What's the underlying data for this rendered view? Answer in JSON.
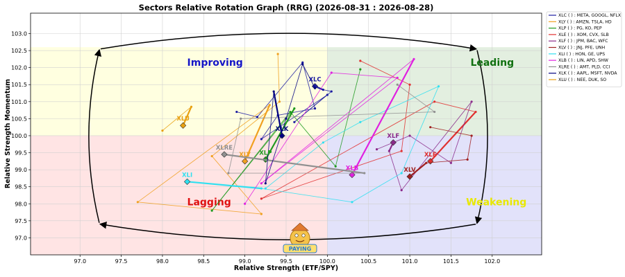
{
  "chart_data": {
    "type": "scatter",
    "title": "Sectors Relative Rotation Graph (RRG) (2026-08-31 : 2026-08-28)",
    "xlabel": "Relative Strength (ETF/SPY)",
    "ylabel": "Relative Strength Momentum",
    "xlim": [
      96.4,
      102.6
    ],
    "ylim": [
      96.5,
      103.6
    ],
    "xticks": [
      "97.0",
      "97.5",
      "98.0",
      "98.5",
      "99.0",
      "99.5",
      "100.0",
      "100.5",
      "101.0",
      "101.5",
      "102.0"
    ],
    "yticks": [
      "97.0",
      "97.5",
      "98.0",
      "98.5",
      "99.0",
      "99.5",
      "100.0",
      "100.5",
      "101.0",
      "101.5",
      "102.0",
      "102.5",
      "103.0"
    ],
    "grid": true,
    "legend_position": "right-outside",
    "quadrants": [
      {
        "name": "Improving",
        "color": "#1515c8",
        "fill": "#ffffe0"
      },
      {
        "name": "Leading",
        "color": "#107010",
        "fill": "#e3efe0"
      },
      {
        "name": "Lagging",
        "color": "#e01010",
        "fill": "#ffe4e4"
      },
      {
        "name": "Weakening",
        "color": "#e8e800",
        "fill": "#e2e2fa"
      }
    ],
    "series": [
      {
        "symbol": "XLC",
        "legend": "XLC ( ) : META, GOOGL, NFLX",
        "color": "#1a1aa0",
        "points": [
          [
            98.9,
            100.7
          ],
          [
            99.15,
            100.55
          ],
          [
            99.7,
            102.15
          ],
          [
            99.85,
            100.8
          ],
          [
            99.4,
            100.6
          ],
          [
            99.2,
            99.9
          ],
          [
            100.0,
            101.2
          ],
          [
            99.6,
            100.4
          ],
          [
            100.05,
            101.3
          ],
          [
            99.95,
            101.35
          ],
          [
            99.85,
            101.45
          ]
        ]
      },
      {
        "symbol": "XLY",
        "legend": "XLY ( ) : AMZN, TSLA, HD",
        "color": "#f0a020",
        "points": [
          [
            99.4,
            102.4
          ],
          [
            99.42,
            101.0
          ],
          [
            98.6,
            99.4
          ],
          [
            99.2,
            97.7
          ],
          [
            97.7,
            98.05
          ],
          [
            99.3,
            100.9
          ],
          [
            99.0,
            99.25
          ]
        ]
      },
      {
        "symbol": "XLP",
        "legend": "XLP ( ) : PG, KO, PEP",
        "color": "#1f9a1f",
        "points": [
          [
            100.4,
            101.95
          ],
          [
            100.1,
            99.1
          ],
          [
            99.55,
            100.7
          ],
          [
            98.6,
            97.8
          ],
          [
            99.6,
            100.8
          ],
          [
            99.25,
            99.3
          ]
        ]
      },
      {
        "symbol": "XLE",
        "legend": "XLE ( ) : XOM, CVX, SLB",
        "color": "#e03030",
        "points": [
          [
            100.4,
            102.2
          ],
          [
            101.0,
            101.5
          ],
          [
            100.9,
            99.55
          ],
          [
            99.2,
            98.15
          ],
          [
            101.3,
            101.0
          ],
          [
            101.8,
            100.7
          ],
          [
            101.25,
            99.25
          ]
        ]
      },
      {
        "symbol": "XLF",
        "legend": "XLF ( ) : JPM, BAC, WFC",
        "color": "#8a2a8a",
        "points": [
          [
            100.6,
            99.6
          ],
          [
            101.0,
            100.0
          ],
          [
            101.5,
            99.2
          ],
          [
            101.75,
            101.0
          ],
          [
            100.9,
            98.4
          ],
          [
            100.75,
            99.55
          ],
          [
            100.8,
            99.8
          ]
        ]
      },
      {
        "symbol": "XLV",
        "legend": "XLV ( ) : JNJ, PFE, UNH",
        "color": "#a02020",
        "points": [
          [
            101.25,
            100.25
          ],
          [
            101.75,
            100.0
          ],
          [
            101.7,
            99.3
          ],
          [
            101.2,
            99.2
          ],
          [
            101.0,
            98.8
          ]
        ]
      },
      {
        "symbol": "XLI",
        "legend": "XLI ( ) : HON, GE, UPS",
        "color": "#30e0f0",
        "points": [
          [
            99.25,
            98.45
          ],
          [
            99.95,
            99.8
          ],
          [
            100.4,
            100.4
          ],
          [
            101.35,
            101.45
          ],
          [
            100.9,
            98.9
          ],
          [
            100.3,
            98.05
          ],
          [
            99.2,
            98.45
          ],
          [
            98.3,
            98.65
          ]
        ]
      },
      {
        "symbol": "XLB",
        "legend": "XLB ( ) : LIN, APD, SHW",
        "color": "#e020e0",
        "points": [
          [
            99.0,
            98.0
          ],
          [
            100.05,
            101.85
          ],
          [
            100.85,
            101.7
          ],
          [
            99.2,
            98.6
          ],
          [
            101.05,
            102.25
          ],
          [
            100.3,
            98.85
          ]
        ]
      },
      {
        "symbol": "XLRE",
        "legend": "XLRE ( ) : AMT, PLD, CCI",
        "color": "#909090",
        "points": [
          [
            100.85,
            101.5
          ],
          [
            101.3,
            100.7
          ],
          [
            98.95,
            100.5
          ],
          [
            98.8,
            98.9
          ],
          [
            100.45,
            98.9
          ],
          [
            98.75,
            99.45
          ]
        ]
      },
      {
        "symbol": "XLK",
        "legend": "XLK ( ) : AAPL, MSFT, NVDA",
        "color": "#000080",
        "points": [
          [
            99.85,
            101.4
          ],
          [
            99.7,
            102.1
          ],
          [
            99.5,
            100.5
          ],
          [
            99.25,
            98.6
          ],
          [
            99.35,
            101.3
          ],
          [
            99.45,
            100.0
          ]
        ]
      },
      {
        "symbol": "XLU",
        "legend": "XLU ( ) : NEE, DUK, SO",
        "color": "#e8a010",
        "points": [
          [
            98.0,
            100.15
          ],
          [
            98.35,
            100.85
          ],
          [
            98.25,
            100.3
          ]
        ]
      }
    ]
  },
  "logo": {
    "text": "PAYING"
  }
}
